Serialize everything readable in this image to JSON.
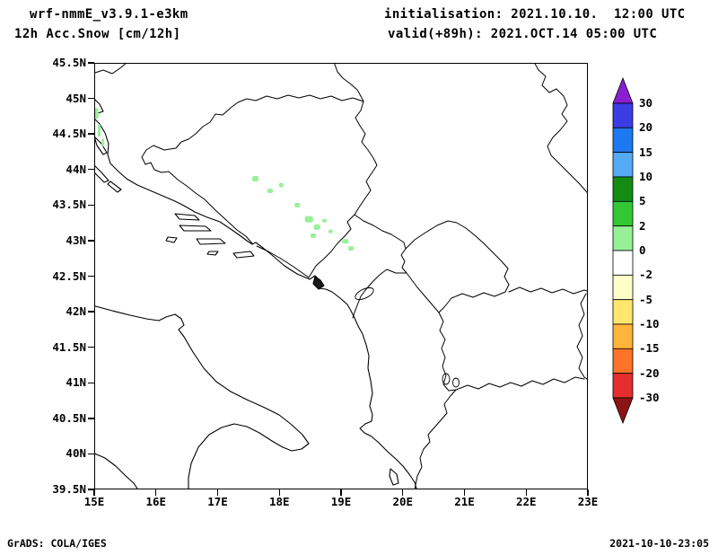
{
  "header": {
    "model": "wrf-nmmE_v3.9.1-e3km",
    "product": "12h Acc.Snow [cm/12h]",
    "init_label": "initialisation: 2021.10.10.  12:00 UTC",
    "valid_label": "valid(+89h): 2021.OCT.14 05:00 UTC"
  },
  "footer": {
    "grads_credit": "GrADS: COLA/IGES",
    "created": "2021-10-10-23:05"
  },
  "map": {
    "lat_ticks": [
      "45.5N",
      "45N",
      "44.5N",
      "44N",
      "43.5N",
      "43N",
      "42.5N",
      "42N",
      "41.5N",
      "41N",
      "40.5N",
      "40N",
      "39.5N"
    ],
    "lon_ticks": [
      "15E",
      "16E",
      "17E",
      "18E",
      "19E",
      "20E",
      "21E",
      "22E",
      "23E"
    ]
  },
  "colorbar": {
    "labels": [
      "30",
      "20",
      "15",
      "10",
      "5",
      "2",
      "0",
      "-2",
      "-5",
      "-10",
      "-15",
      "-20",
      "-30"
    ],
    "arrow_top_color": "#8a1fd2",
    "arrow_bottom_color": "#8c1414",
    "segment_colors": [
      "#3c3ce6",
      "#1e78f0",
      "#55aaf5",
      "#148c14",
      "#32c832",
      "#96f096",
      "#ffffff",
      "#ffffc8",
      "#ffe66e",
      "#ffb43c",
      "#ff7328",
      "#e62e2e"
    ]
  },
  "colors": {
    "snow": "#9af09a",
    "line": "#000000",
    "background": "#ffffff"
  },
  "chart_data": {
    "type": "heatmap",
    "title": "12h Acc.Snow [cm/12h]",
    "units": "cm/12h",
    "lon_range": [
      15,
      23
    ],
    "lat_range": [
      39.5,
      45.5
    ],
    "levels": [
      -30,
      -20,
      -15,
      -10,
      -5,
      -2,
      0,
      2,
      5,
      10,
      15,
      20,
      30
    ],
    "snow_points": [
      {
        "lon": 15.04,
        "lat": 44.79,
        "w": 4,
        "h": 12,
        "value": 1
      },
      {
        "lon": 15.08,
        "lat": 44.55,
        "w": 3,
        "h": 14,
        "value": 1
      },
      {
        "lon": 15.14,
        "lat": 44.38,
        "w": 3,
        "h": 9,
        "value": 1
      },
      {
        "lon": 17.61,
        "lat": 43.87,
        "w": 7,
        "h": 6,
        "value": 1
      },
      {
        "lon": 17.85,
        "lat": 43.7,
        "w": 6,
        "h": 5,
        "value": 1
      },
      {
        "lon": 18.03,
        "lat": 43.78,
        "w": 5,
        "h": 5,
        "value": 1
      },
      {
        "lon": 18.29,
        "lat": 43.5,
        "w": 6,
        "h": 5,
        "value": 1
      },
      {
        "lon": 18.48,
        "lat": 43.3,
        "w": 9,
        "h": 7,
        "value": 2
      },
      {
        "lon": 18.61,
        "lat": 43.19,
        "w": 7,
        "h": 6,
        "value": 2
      },
      {
        "lon": 18.73,
        "lat": 43.28,
        "w": 5,
        "h": 4,
        "value": 1
      },
      {
        "lon": 18.55,
        "lat": 43.07,
        "w": 6,
        "h": 5,
        "value": 1
      },
      {
        "lon": 18.83,
        "lat": 43.13,
        "w": 5,
        "h": 4,
        "value": 1
      },
      {
        "lon": 19.07,
        "lat": 42.99,
        "w": 7,
        "h": 5,
        "value": 1
      },
      {
        "lon": 19.16,
        "lat": 42.89,
        "w": 6,
        "h": 5,
        "value": 1
      }
    ]
  }
}
